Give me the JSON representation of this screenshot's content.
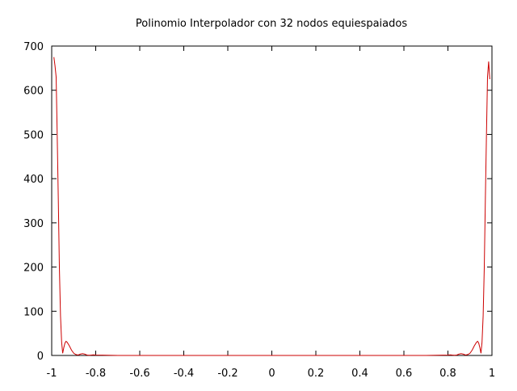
{
  "chart_data": {
    "type": "line",
    "title": "Polinomio Interpolador con 32 nodos equiespaiados",
    "xlabel": "",
    "ylabel": "",
    "xlim": [
      -1,
      1
    ],
    "ylim": [
      0,
      700
    ],
    "x_ticks": [
      -1,
      -0.8,
      -0.6,
      -0.4,
      -0.2,
      0,
      0.2,
      0.4,
      0.6,
      0.8,
      1
    ],
    "x_tick_labels": [
      "-1",
      "-0.8",
      "-0.6",
      "-0.4",
      "-0.2",
      "0",
      "0.2",
      "0.4",
      "0.6",
      "0.8",
      "1"
    ],
    "y_ticks": [
      0,
      100,
      200,
      300,
      400,
      500,
      600,
      700
    ],
    "y_tick_labels": [
      "0",
      "100",
      "200",
      "300",
      "400",
      "500",
      "600",
      "700"
    ],
    "grid": false,
    "legend": "none",
    "series": [
      {
        "color": "#cc0000",
        "x": [
          -0.99,
          -0.985,
          -0.98,
          -0.975,
          -0.97,
          -0.965,
          -0.96,
          -0.955,
          -0.95,
          -0.945,
          -0.94,
          -0.935,
          -0.93,
          -0.92,
          -0.91,
          -0.9,
          -0.89,
          -0.88,
          -0.87,
          -0.86,
          -0.85,
          -0.84,
          -0.83,
          -0.82,
          -0.81,
          -0.8,
          -0.7,
          -0.5,
          -0.3,
          0,
          0.3,
          0.5,
          0.7,
          0.8,
          0.81,
          0.82,
          0.83,
          0.84,
          0.85,
          0.86,
          0.87,
          0.88,
          0.89,
          0.9,
          0.91,
          0.92,
          0.93,
          0.935,
          0.94,
          0.945,
          0.95,
          0.955,
          0.96,
          0.965,
          0.97,
          0.975,
          0.98,
          0.985,
          0.99
        ],
        "y": [
          675,
          655,
          630,
          500,
          350,
          200,
          90,
          30,
          5,
          18,
          28,
          32,
          30,
          22,
          12,
          5,
          2,
          1,
          3,
          4,
          3,
          1,
          0.5,
          1,
          1.5,
          1,
          0,
          0,
          0,
          0,
          0,
          0,
          0,
          1,
          1.5,
          1,
          0.5,
          1,
          3,
          4,
          3,
          1,
          2,
          5,
          12,
          22,
          30,
          32,
          28,
          18,
          5,
          30,
          90,
          200,
          350,
          500,
          630,
          665,
          625
        ]
      }
    ]
  }
}
